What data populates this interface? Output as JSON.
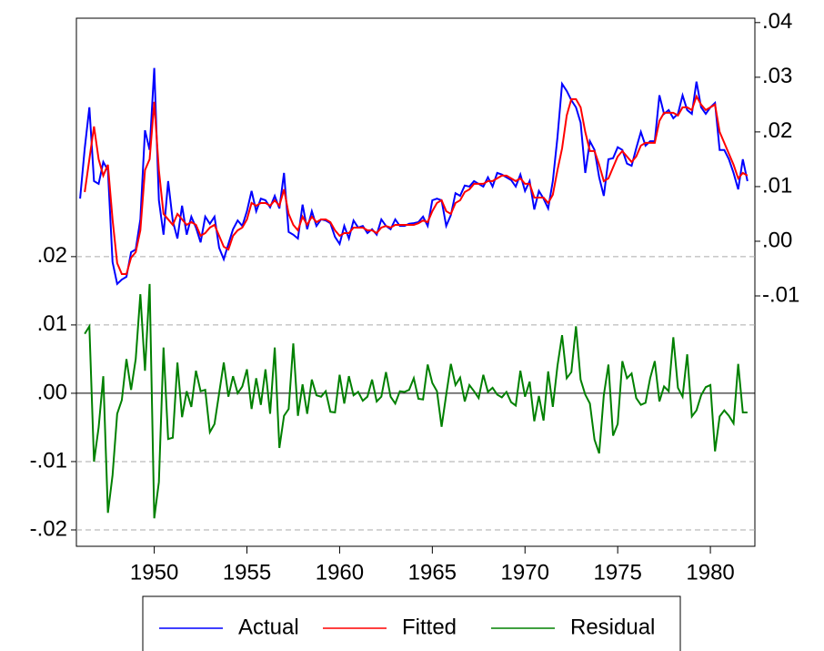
{
  "chart_data": {
    "type": "line",
    "x": [
      1946,
      1946.25,
      1946.5,
      1946.75,
      1947,
      1947.25,
      1947.5,
      1947.75,
      1948,
      1948.25,
      1948.5,
      1948.75,
      1949,
      1949.25,
      1949.5,
      1949.75,
      1950,
      1950.25,
      1950.5,
      1950.75,
      1951,
      1951.25,
      1951.5,
      1951.75,
      1952,
      1952.25,
      1952.5,
      1952.75,
      1953,
      1953.25,
      1953.5,
      1953.75,
      1954,
      1954.25,
      1954.5,
      1954.75,
      1955,
      1955.25,
      1955.5,
      1955.75,
      1956,
      1956.25,
      1956.5,
      1956.75,
      1957,
      1957.25,
      1957.5,
      1957.75,
      1958,
      1958.25,
      1958.5,
      1958.75,
      1959,
      1959.25,
      1959.5,
      1959.75,
      1960,
      1960.25,
      1960.5,
      1960.75,
      1961,
      1961.25,
      1961.5,
      1961.75,
      1962,
      1962.25,
      1962.5,
      1962.75,
      1963,
      1963.25,
      1963.5,
      1963.75,
      1964,
      1964.25,
      1964.5,
      1964.75,
      1965,
      1965.25,
      1965.5,
      1965.75,
      1966,
      1966.25,
      1966.5,
      1966.75,
      1967,
      1967.25,
      1967.5,
      1967.75,
      1968,
      1968.25,
      1968.5,
      1968.75,
      1969,
      1969.25,
      1969.5,
      1969.75,
      1970,
      1970.25,
      1970.5,
      1970.75,
      1971,
      1971.25,
      1971.5,
      1971.75,
      1972,
      1972.25,
      1972.5,
      1972.75,
      1973,
      1973.25,
      1973.5,
      1973.75,
      1974,
      1974.25,
      1974.5,
      1974.75,
      1975,
      1975.25,
      1975.5,
      1975.75,
      1976,
      1976.25,
      1976.5,
      1976.75,
      1977,
      1977.25,
      1977.5,
      1977.75,
      1978,
      1978.25,
      1978.5,
      1978.75,
      1979,
      1979.25,
      1979.5,
      1979.75,
      1980,
      1980.25,
      1980.5,
      1980.75,
      1981,
      1981.25,
      1981.5,
      1981.75,
      1982
    ],
    "series": [
      {
        "name": "Actual",
        "color": "#0000ff",
        "axis": "y2",
        "values": [
          0.0078,
          0.017,
          0.0245,
          0.011,
          0.0105,
          0.0145,
          0.013,
          -0.0038,
          -0.0078,
          -0.007,
          -0.0065,
          -0.002,
          -0.0015,
          0.004,
          0.0203,
          0.0167,
          0.0317,
          0.0075,
          0.0012,
          0.011,
          0.0037,
          0.0005,
          0.0065,
          0.0012,
          0.0045,
          0.0025,
          -0.0002,
          0.0045,
          0.0032,
          0.0045,
          -0.0012,
          -0.0033,
          -0.0005,
          0.0022,
          0.0038,
          0.0028,
          0.0055,
          0.0092,
          0.0055,
          0.0078,
          0.0075,
          0.0062,
          0.0083,
          0.006,
          0.0125,
          0.0017,
          0.0012,
          0.0005,
          0.0067,
          0.0022,
          0.0055,
          0.0028,
          0.004,
          0.0038,
          0.0033,
          0.0008,
          -0.0005,
          0.0028,
          0.0005,
          0.0038,
          0.0025,
          0.0028,
          0.0015,
          0.0022,
          0.0012,
          0.004,
          0.0028,
          0.0022,
          0.004,
          0.0028,
          0.0028,
          0.0032,
          0.0033,
          0.0035,
          0.0045,
          0.0028,
          0.0075,
          0.0078,
          0.0075,
          0.0028,
          0.0048,
          0.0088,
          0.0083,
          0.0102,
          0.01,
          0.011,
          0.0105,
          0.01,
          0.0117,
          0.01,
          0.0125,
          0.0122,
          0.0117,
          0.0112,
          0.01,
          0.0122,
          0.0092,
          0.011,
          0.0058,
          0.0092,
          0.0078,
          0.006,
          0.011,
          0.019,
          0.0288,
          0.0275,
          0.0258,
          0.0245,
          0.0217,
          0.0125,
          0.0183,
          0.0167,
          0.0117,
          0.0083,
          0.015,
          0.0152,
          0.0172,
          0.0167,
          0.0142,
          0.0138,
          0.017,
          0.02,
          0.0175,
          0.0183,
          0.0183,
          0.0267,
          0.0233,
          0.024,
          0.0225,
          0.0233,
          0.0267,
          0.024,
          0.0233,
          0.0292,
          0.0245,
          0.0233,
          0.0245,
          0.0253,
          0.0167,
          0.0167,
          0.015,
          0.0125,
          0.0095,
          0.015,
          0.011
        ]
      },
      {
        "name": "Fitted",
        "color": "#ff0000",
        "axis": "y2",
        "values": [
          null,
          0.009,
          0.015,
          0.021,
          0.015,
          0.012,
          0.014,
          0.004,
          -0.004,
          -0.006,
          -0.006,
          -0.003,
          -0.002,
          0.002,
          0.013,
          0.015,
          0.0255,
          0.013,
          0.005,
          0.004,
          0.003,
          0.005,
          0.004,
          0.003,
          0.0035,
          0.003,
          0.001,
          0.0015,
          0.0025,
          0.003,
          0.001,
          -0.001,
          -0.0015,
          0.001,
          0.002,
          0.0025,
          0.004,
          0.007,
          0.0065,
          0.007,
          0.007,
          0.0065,
          0.0075,
          0.0065,
          0.0095,
          0.005,
          0.003,
          0.002,
          0.0045,
          0.003,
          0.0045,
          0.0035,
          0.004,
          0.004,
          0.0035,
          0.002,
          0.001,
          0.0015,
          0.0015,
          0.0025,
          0.0025,
          0.0025,
          0.002,
          0.002,
          0.0015,
          0.0025,
          0.0028,
          0.0025,
          0.003,
          0.003,
          0.003,
          0.003,
          0.003,
          0.0033,
          0.0038,
          0.0035,
          0.0055,
          0.007,
          0.0075,
          0.0055,
          0.005,
          0.007,
          0.0075,
          0.009,
          0.0095,
          0.0105,
          0.0105,
          0.0105,
          0.011,
          0.011,
          0.0115,
          0.012,
          0.012,
          0.0115,
          0.011,
          0.0115,
          0.0105,
          0.0105,
          0.008,
          0.008,
          0.008,
          0.007,
          0.0085,
          0.013,
          0.017,
          0.023,
          0.026,
          0.026,
          0.0245,
          0.02,
          0.0165,
          0.0165,
          0.014,
          0.011,
          0.0115,
          0.0135,
          0.0155,
          0.0165,
          0.0155,
          0.0145,
          0.0155,
          0.0175,
          0.018,
          0.018,
          0.018,
          0.022,
          0.0235,
          0.0235,
          0.0235,
          0.023,
          0.0245,
          0.0245,
          0.024,
          0.0265,
          0.025,
          0.024,
          0.0245,
          0.025,
          0.02,
          0.018,
          0.016,
          0.014,
          0.0115,
          0.0125,
          0.012
        ]
      },
      {
        "name": "Residual",
        "color": "#008000",
        "values": [
          null,
          0.0087,
          0.0098,
          -0.01,
          -0.005,
          0.0025,
          -0.0175,
          -0.012,
          -0.003,
          -0.001,
          0.005,
          0.0005,
          0.005,
          0.0145,
          0.0033,
          0.016,
          -0.0183,
          -0.013,
          0.0067,
          -0.0067,
          -0.0065,
          0.0045,
          -0.0035,
          0.0003,
          -0.002,
          0.0033,
          0.0003,
          0.0005,
          -0.0057,
          -0.0045,
          0,
          0.0045,
          -0.0005,
          0.0025,
          0,
          0.001,
          0.0035,
          -0.0023,
          0.0022,
          -0.0017,
          0.0035,
          -0.003,
          0.0067,
          -0.008,
          -0.0033,
          -0.0023,
          0.0073,
          -0.0033,
          0.0013,
          -0.003,
          0.002,
          -0.0003,
          -0.0005,
          0.0003,
          -0.0027,
          -0.0028,
          0.0027,
          -0.0015,
          0.0025,
          -0.0003,
          0.0002,
          -0.0011,
          -0.0005,
          0.002,
          -0.0012,
          -0.0005,
          0.0031,
          -0.0005,
          -0.0015,
          0.0003,
          0.0002,
          0.0005,
          0.0022,
          -0.0008,
          -0.0009,
          0.0042,
          0.0015,
          0.0003,
          -0.0049,
          -0.0002,
          0.0043,
          0.0012,
          0.0023,
          -0.0012,
          0.0012,
          0.0003,
          -0.0007,
          0.0027,
          0.0002,
          0.0008,
          -0.0002,
          -0.0006,
          0.0002,
          -0.0013,
          -0.0018,
          0.0033,
          -0.0005,
          0.0017,
          -0.0041,
          -0.0004,
          -0.004,
          0.0032,
          -0.002,
          0.004,
          0.0085,
          0.0022,
          0.0031,
          0.0098,
          0.002,
          -0.0002,
          -0.0015,
          -0.0068,
          -0.0088,
          -0.0003,
          0.0042,
          -0.0062,
          -0.0045,
          0.0047,
          0.0022,
          0.0029,
          -0.0007,
          -0.0017,
          -0.0014,
          0.0022,
          0.0047,
          -0.0012,
          0.001,
          0.0003,
          0.0082,
          0.0008,
          -0.0005,
          0.0057,
          -0.0034,
          -0.0025,
          -0.0003,
          0.0009,
          0.0012,
          -0.0085,
          -0.0034,
          -0.0025,
          -0.0033,
          -0.0044,
          0.0043,
          -0.0028,
          -0.0028
        ]
      }
    ],
    "xlim": [
      1945.8,
      1982.4
    ],
    "xticks": [
      1950,
      1955,
      1960,
      1965,
      1970,
      1975,
      1980
    ],
    "ylim": [
      -0.0224,
      0.0549
    ],
    "yticks": [
      {
        "value": 0.02,
        "label": ".02"
      },
      {
        "value": 0.01,
        "label": ".01"
      },
      {
        "value": 0,
        "label": ".00"
      },
      {
        "value": -0.01,
        "label": "-.01"
      },
      {
        "value": -0.02,
        "label": "-.02"
      }
    ],
    "y2lim": [
      -0.0558,
      0.0408
    ],
    "y2ticks": [
      {
        "value": 0.04,
        "label": ".04"
      },
      {
        "value": 0.03,
        "label": ".03"
      },
      {
        "value": 0.02,
        "label": ".02"
      },
      {
        "value": 0.01,
        "label": ".01"
      },
      {
        "value": 0,
        "label": ".00"
      },
      {
        "value": -0.01,
        "label": "-.01"
      }
    ],
    "grid": true,
    "legend": "bottom"
  }
}
